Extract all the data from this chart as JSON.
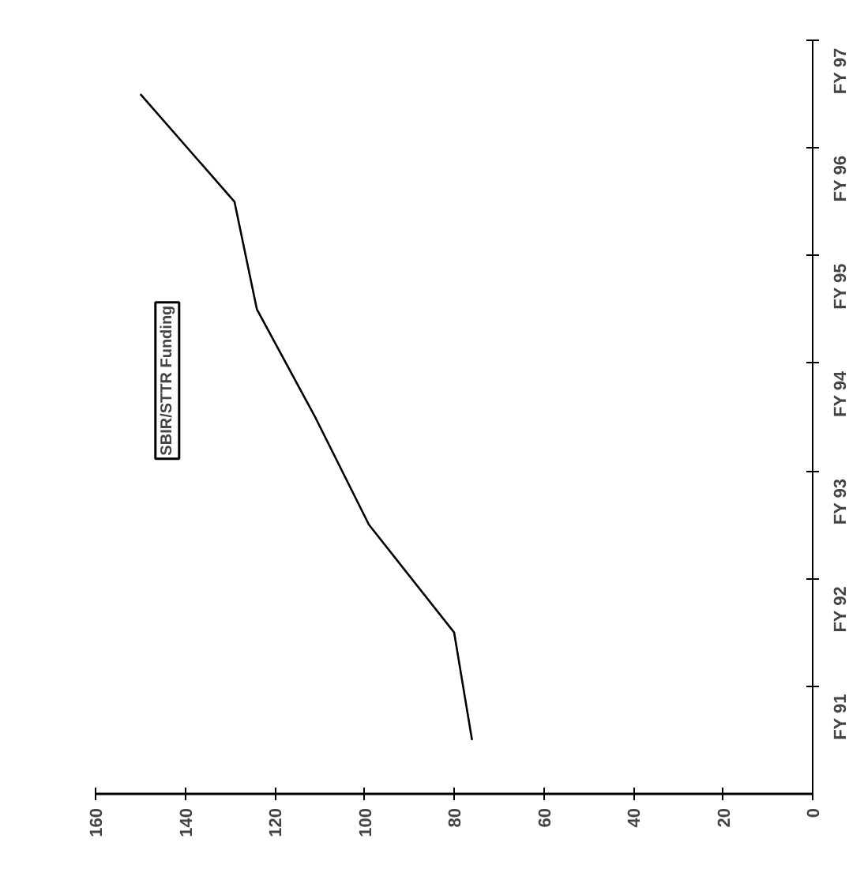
{
  "chart_data": {
    "type": "line",
    "orientation": "horizontal",
    "categories": [
      "FY 97",
      "FY 96",
      "FY 95",
      "FY 94",
      "FY 93",
      "FY 92",
      "FY 91"
    ],
    "series": [
      {
        "name": "SBIR/STTR Funding",
        "color": "#000000",
        "values": [
          150,
          129,
          124,
          111,
          99,
          80,
          76
        ]
      }
    ],
    "xlim": [
      160,
      0
    ],
    "xticks": [
      0,
      20,
      40,
      60,
      80,
      100,
      120,
      140,
      160
    ],
    "grid": false,
    "marker": "none",
    "line_style": "solid"
  }
}
